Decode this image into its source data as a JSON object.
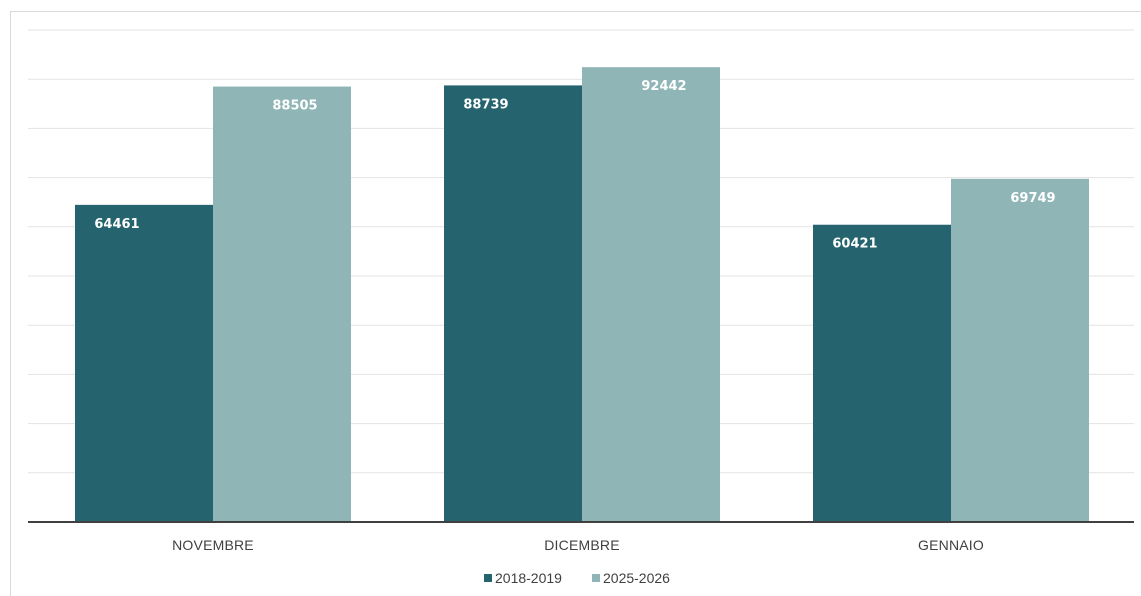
{
  "chart_data": {
    "type": "bar",
    "categories": [
      "NOVEMBRE",
      "DICEMBRE",
      "GENNAIO"
    ],
    "series": [
      {
        "name": "2018-2019",
        "values": [
          64461,
          88739,
          60421
        ],
        "color": "#25646e"
      },
      {
        "name": "2025-2026",
        "values": [
          88505,
          92442,
          69749
        ],
        "color": "#8fb5b6"
      }
    ],
    "ylim": [
      0,
      100000
    ],
    "y_gridline_step": 10000,
    "grid": true,
    "legend": "bottom-center",
    "title": "",
    "xlabel": "",
    "ylabel": "",
    "colors": {
      "gridline": "#e3e3e3",
      "axis": "#404040",
      "label_text": "#ffffff",
      "category_text": "#404040"
    }
  }
}
